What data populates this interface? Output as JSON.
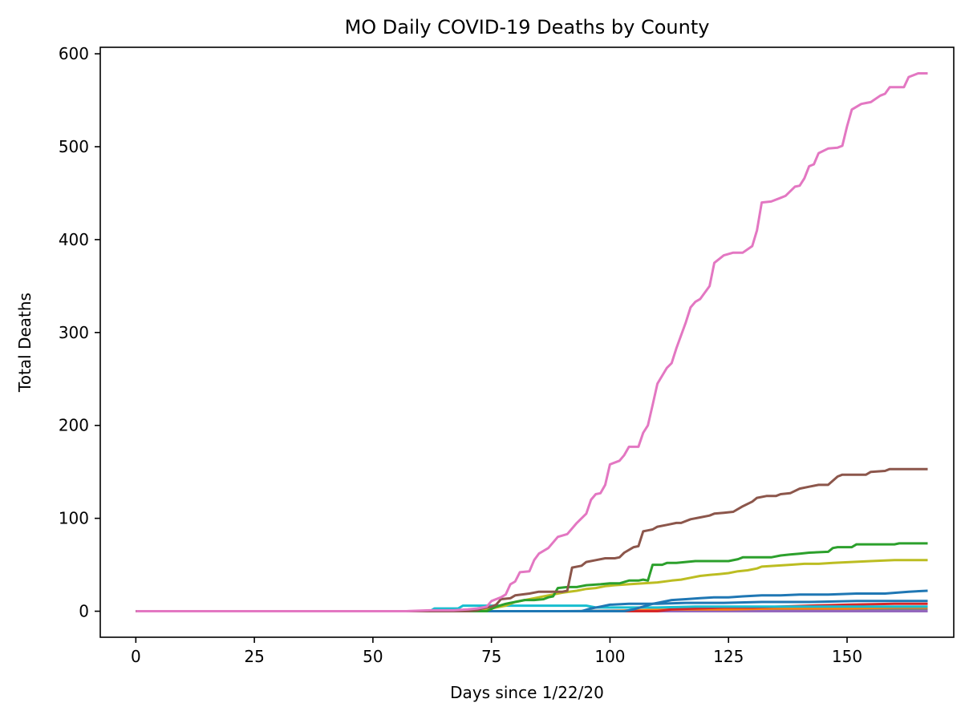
{
  "chart_data": {
    "type": "line",
    "title": "MO Daily COVID-19 Deaths by County",
    "xlabel": "Days since 1/22/20",
    "ylabel": "Total Deaths",
    "xlim": [
      -7.5,
      172.5
    ],
    "ylim": [
      -28,
      607
    ],
    "xticks": [
      0,
      25,
      50,
      75,
      100,
      125,
      150
    ],
    "yticks": [
      0,
      100,
      200,
      300,
      400,
      500,
      600
    ],
    "grid": false,
    "legend": "none",
    "series": [
      {
        "color": "#e377c2",
        "points": [
          [
            0,
            0
          ],
          [
            57,
            0
          ],
          [
            62,
            1
          ],
          [
            67,
            1
          ],
          [
            70,
            2
          ],
          [
            72,
            3
          ],
          [
            74,
            5
          ],
          [
            75,
            11
          ],
          [
            77,
            15
          ],
          [
            78,
            18
          ],
          [
            79,
            29
          ],
          [
            80,
            32
          ],
          [
            81,
            42
          ],
          [
            83,
            43
          ],
          [
            84,
            55
          ],
          [
            85,
            62
          ],
          [
            87,
            68
          ],
          [
            89,
            80
          ],
          [
            91,
            83
          ],
          [
            93,
            95
          ],
          [
            95,
            105
          ],
          [
            96,
            120
          ],
          [
            97,
            126
          ],
          [
            98,
            127
          ],
          [
            99,
            136
          ],
          [
            100,
            158
          ],
          [
            102,
            162
          ],
          [
            103,
            168
          ],
          [
            104,
            177
          ],
          [
            106,
            177
          ],
          [
            107,
            192
          ],
          [
            108,
            200
          ],
          [
            109,
            222
          ],
          [
            110,
            245
          ],
          [
            112,
            262
          ],
          [
            113,
            267
          ],
          [
            114,
            283
          ],
          [
            116,
            311
          ],
          [
            117,
            327
          ],
          [
            118,
            333
          ],
          [
            119,
            336
          ],
          [
            121,
            350
          ],
          [
            122,
            375
          ],
          [
            124,
            383
          ],
          [
            126,
            386
          ],
          [
            128,
            386
          ],
          [
            130,
            393
          ],
          [
            131,
            410
          ],
          [
            132,
            440
          ],
          [
            134,
            441
          ],
          [
            136,
            445
          ],
          [
            137,
            447
          ],
          [
            139,
            457
          ],
          [
            140,
            458
          ],
          [
            141,
            466
          ],
          [
            142,
            479
          ],
          [
            143,
            481
          ],
          [
            144,
            493
          ],
          [
            146,
            498
          ],
          [
            148,
            499
          ],
          [
            149,
            501
          ],
          [
            150,
            522
          ],
          [
            151,
            540
          ],
          [
            153,
            546
          ],
          [
            154,
            547
          ],
          [
            155,
            548
          ],
          [
            157,
            555
          ],
          [
            158,
            557
          ],
          [
            159,
            564
          ],
          [
            162,
            564
          ],
          [
            163,
            575
          ],
          [
            165,
            579
          ],
          [
            167,
            579
          ]
        ]
      },
      {
        "color": "#8c564b",
        "points": [
          [
            0,
            0
          ],
          [
            70,
            0
          ],
          [
            72,
            1
          ],
          [
            73,
            3
          ],
          [
            75,
            5
          ],
          [
            76,
            7
          ],
          [
            77,
            13
          ],
          [
            79,
            14
          ],
          [
            80,
            17
          ],
          [
            83,
            19
          ],
          [
            85,
            21
          ],
          [
            90,
            21
          ],
          [
            91,
            22
          ],
          [
            92,
            47
          ],
          [
            94,
            49
          ],
          [
            95,
            53
          ],
          [
            97,
            55
          ],
          [
            99,
            57
          ],
          [
            101,
            57
          ],
          [
            102,
            58
          ],
          [
            103,
            63
          ],
          [
            105,
            69
          ],
          [
            106,
            70
          ],
          [
            107,
            86
          ],
          [
            108,
            87
          ],
          [
            109,
            88
          ],
          [
            110,
            91
          ],
          [
            112,
            93
          ],
          [
            114,
            95
          ],
          [
            115,
            95
          ],
          [
            117,
            99
          ],
          [
            119,
            101
          ],
          [
            121,
            103
          ],
          [
            122,
            105
          ],
          [
            124,
            106
          ],
          [
            126,
            107
          ],
          [
            128,
            113
          ],
          [
            130,
            118
          ],
          [
            131,
            122
          ],
          [
            133,
            124
          ],
          [
            135,
            124
          ],
          [
            136,
            126
          ],
          [
            138,
            127
          ],
          [
            140,
            132
          ],
          [
            142,
            134
          ],
          [
            144,
            136
          ],
          [
            146,
            136
          ],
          [
            148,
            145
          ],
          [
            149,
            147
          ],
          [
            154,
            147
          ],
          [
            155,
            150
          ],
          [
            158,
            151
          ],
          [
            159,
            153
          ],
          [
            167,
            153
          ]
        ]
      },
      {
        "color": "#2ca02c",
        "points": [
          [
            0,
            0
          ],
          [
            74,
            0
          ],
          [
            76,
            5
          ],
          [
            78,
            8
          ],
          [
            80,
            10
          ],
          [
            82,
            12
          ],
          [
            84,
            12
          ],
          [
            86,
            13
          ],
          [
            87,
            15
          ],
          [
            88,
            16
          ],
          [
            89,
            25
          ],
          [
            91,
            26
          ],
          [
            93,
            26
          ],
          [
            95,
            28
          ],
          [
            98,
            29
          ],
          [
            100,
            30
          ],
          [
            102,
            30
          ],
          [
            104,
            33
          ],
          [
            106,
            33
          ],
          [
            107,
            34
          ],
          [
            108,
            33
          ],
          [
            109,
            50
          ],
          [
            111,
            50
          ],
          [
            112,
            52
          ],
          [
            114,
            52
          ],
          [
            116,
            53
          ],
          [
            118,
            54
          ],
          [
            125,
            54
          ],
          [
            127,
            56
          ],
          [
            128,
            58
          ],
          [
            134,
            58
          ],
          [
            136,
            60
          ],
          [
            138,
            61
          ],
          [
            140,
            62
          ],
          [
            142,
            63
          ],
          [
            146,
            64
          ],
          [
            147,
            68
          ],
          [
            148,
            69
          ],
          [
            151,
            69
          ],
          [
            152,
            72
          ],
          [
            160,
            72
          ],
          [
            161,
            73
          ],
          [
            167,
            73
          ]
        ]
      },
      {
        "color": "#bcbd22",
        "points": [
          [
            0,
            0
          ],
          [
            70,
            0
          ],
          [
            72,
            1
          ],
          [
            74,
            2
          ],
          [
            76,
            4
          ],
          [
            78,
            6
          ],
          [
            80,
            10
          ],
          [
            84,
            14
          ],
          [
            86,
            16
          ],
          [
            88,
            18
          ],
          [
            90,
            20
          ],
          [
            93,
            22
          ],
          [
            95,
            24
          ],
          [
            97,
            25
          ],
          [
            99,
            27
          ],
          [
            101,
            28
          ],
          [
            104,
            29
          ],
          [
            107,
            30
          ],
          [
            110,
            31
          ],
          [
            113,
            33
          ],
          [
            115,
            34
          ],
          [
            117,
            36
          ],
          [
            119,
            38
          ],
          [
            121,
            39
          ],
          [
            123,
            40
          ],
          [
            125,
            41
          ],
          [
            127,
            43
          ],
          [
            129,
            44
          ],
          [
            131,
            46
          ],
          [
            132,
            48
          ],
          [
            135,
            49
          ],
          [
            138,
            50
          ],
          [
            141,
            51
          ],
          [
            144,
            51
          ],
          [
            147,
            52
          ],
          [
            151,
            53
          ],
          [
            155,
            54
          ],
          [
            160,
            55
          ],
          [
            167,
            55
          ]
        ]
      },
      {
        "color": "#1f77b4",
        "points": [
          [
            0,
            0
          ],
          [
            103,
            0
          ],
          [
            105,
            2
          ],
          [
            107,
            5
          ],
          [
            109,
            8
          ],
          [
            111,
            10
          ],
          [
            113,
            12
          ],
          [
            116,
            13
          ],
          [
            119,
            14
          ],
          [
            122,
            15
          ],
          [
            125,
            15
          ],
          [
            128,
            16
          ],
          [
            132,
            17
          ],
          [
            136,
            17
          ],
          [
            140,
            18
          ],
          [
            146,
            18
          ],
          [
            152,
            19
          ],
          [
            158,
            19
          ],
          [
            163,
            21
          ],
          [
            167,
            22
          ]
        ]
      },
      {
        "color": "#1f77b4",
        "points": [
          [
            0,
            0
          ],
          [
            94,
            0
          ],
          [
            96,
            3
          ],
          [
            98,
            5
          ],
          [
            100,
            7
          ],
          [
            104,
            8
          ],
          [
            110,
            8
          ],
          [
            116,
            9
          ],
          [
            124,
            9
          ],
          [
            132,
            10
          ],
          [
            142,
            10
          ],
          [
            152,
            11
          ],
          [
            167,
            11
          ]
        ]
      },
      {
        "color": "#17becf",
        "points": [
          [
            0,
            0
          ],
          [
            62,
            0
          ],
          [
            63,
            3
          ],
          [
            68,
            3
          ],
          [
            69,
            6
          ],
          [
            95,
            6
          ],
          [
            97,
            4
          ],
          [
            110,
            4
          ],
          [
            118,
            5
          ],
          [
            130,
            5
          ],
          [
            145,
            5
          ],
          [
            167,
            5
          ]
        ]
      },
      {
        "color": "#d62728",
        "points": [
          [
            0,
            0
          ],
          [
            110,
            0
          ],
          [
            113,
            2
          ],
          [
            118,
            3
          ],
          [
            124,
            4
          ],
          [
            130,
            4
          ],
          [
            136,
            5
          ],
          [
            142,
            6
          ],
          [
            150,
            7
          ],
          [
            160,
            8
          ],
          [
            167,
            8
          ]
        ]
      },
      {
        "color": "#ff7f0e",
        "points": [
          [
            0,
            0
          ],
          [
            100,
            0
          ],
          [
            105,
            1
          ],
          [
            115,
            2
          ],
          [
            125,
            2
          ],
          [
            135,
            3
          ],
          [
            150,
            3
          ],
          [
            160,
            4
          ],
          [
            167,
            4
          ]
        ]
      },
      {
        "color": "#9467bd",
        "points": [
          [
            0,
            0
          ],
          [
            167,
            0
          ]
        ]
      },
      {
        "color": "#7f7f7f",
        "points": [
          [
            0,
            0
          ],
          [
            90,
            0
          ],
          [
            110,
            1
          ],
          [
            130,
            2
          ],
          [
            150,
            2
          ],
          [
            167,
            2
          ]
        ]
      }
    ]
  }
}
